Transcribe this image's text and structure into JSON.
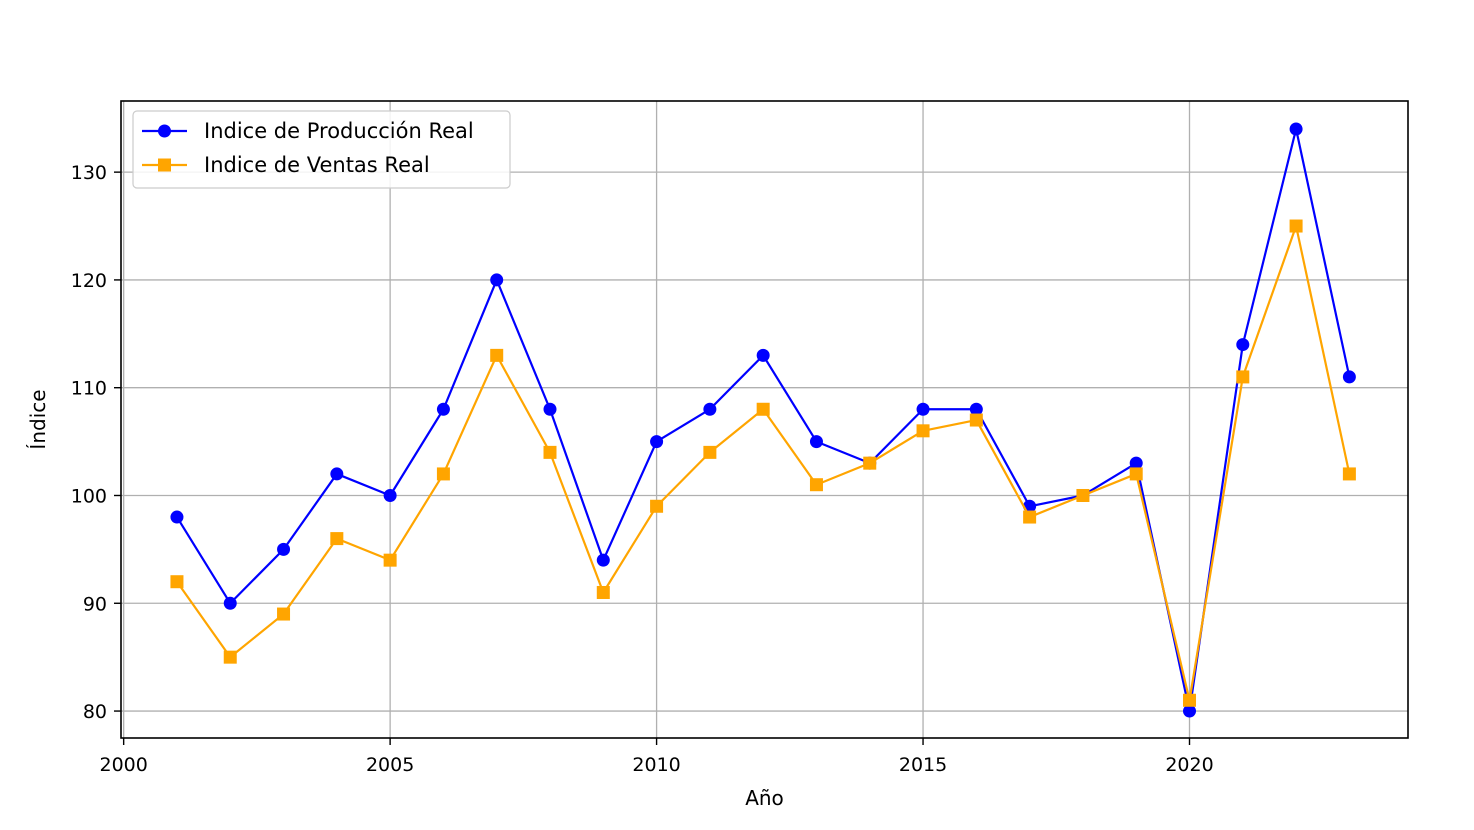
{
  "chart_data": {
    "type": "line",
    "title": "",
    "xlabel": "Año",
    "ylabel": "Índice",
    "x": [
      2001,
      2002,
      2003,
      2004,
      2005,
      2006,
      2007,
      2008,
      2009,
      2010,
      2011,
      2012,
      2013,
      2014,
      2015,
      2016,
      2017,
      2018,
      2019,
      2020,
      2021,
      2022,
      2023
    ],
    "series": [
      {
        "name": "Indice de Producción Real",
        "color": "#0000ff",
        "marker": "circle",
        "values": [
          98,
          90,
          95,
          102,
          100,
          108,
          120,
          108,
          94,
          105,
          108,
          113,
          105,
          103,
          108,
          108,
          99,
          100,
          103,
          80,
          114,
          134,
          111
        ]
      },
      {
        "name": "Indice de Ventas Real",
        "color": "#ffa500",
        "marker": "square",
        "values": [
          92,
          85,
          89,
          96,
          94,
          102,
          113,
          104,
          91,
          99,
          104,
          108,
          101,
          103,
          106,
          107,
          98,
          100,
          102,
          81,
          111,
          125,
          102
        ]
      }
    ],
    "xlim": [
      1999.95,
      2024.1
    ],
    "ylim": [
      77.5,
      136.6
    ],
    "xticks": [
      2000,
      2005,
      2010,
      2015,
      2020
    ],
    "xtick_labels": [
      "2000",
      "2005",
      "2010",
      "2015",
      "2020"
    ],
    "yticks": [
      80,
      90,
      100,
      110,
      120,
      130
    ],
    "ytick_labels": [
      "80",
      "90",
      "100",
      "110",
      "120",
      "130"
    ],
    "grid": true,
    "legend_position": "top-left"
  }
}
